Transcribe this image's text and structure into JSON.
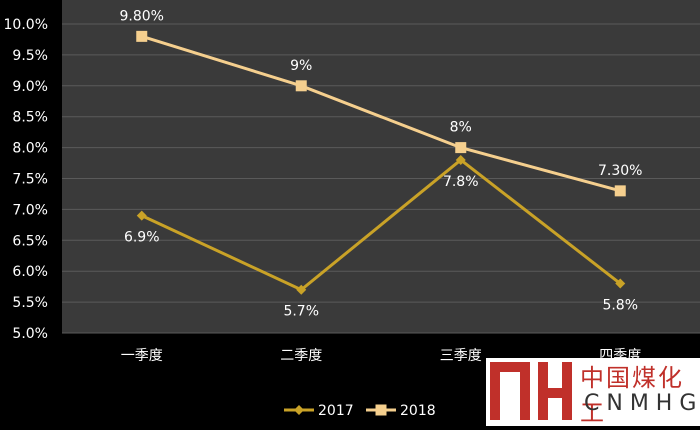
{
  "chart_data": {
    "type": "line",
    "categories": [
      "一季度",
      "二季度",
      "三季度",
      "四季度"
    ],
    "series": [
      {
        "name": "2017",
        "values": [
          6.9,
          5.7,
          7.8,
          5.8
        ],
        "labels": [
          "6.9%",
          "5.7%",
          "7.8%",
          "5.8%"
        ],
        "color": "#c9a227",
        "marker": "diamond"
      },
      {
        "name": "2018",
        "values": [
          9.8,
          9.0,
          8.0,
          7.3
        ],
        "labels": [
          "9.80%",
          "9%",
          "8%",
          "7.30%"
        ],
        "color": "#f5cf8e",
        "marker": "square"
      }
    ],
    "ylim": [
      5.0,
      10.0
    ],
    "yticks": [
      "5.0%",
      "5.5%",
      "6.0%",
      "6.5%",
      "7.0%",
      "7.5%",
      "8.0%",
      "8.5%",
      "9.0%",
      "9.5%",
      "10.0%"
    ],
    "grid": true,
    "legend_position": "bottom",
    "plot_background": "#3a3a3a",
    "page_background": "#000000",
    "gridline_color": "#5a5a5a"
  },
  "watermark": {
    "cn": "中国煤化工",
    "en": "CNMHG"
  }
}
